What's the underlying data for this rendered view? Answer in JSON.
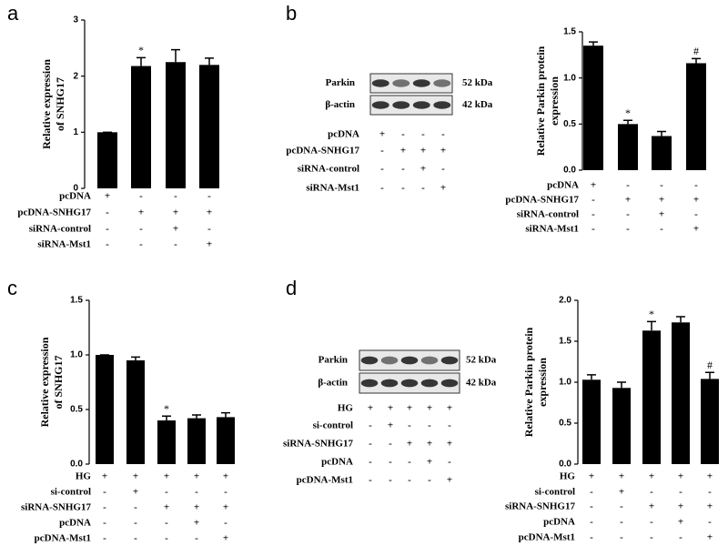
{
  "panel_labels": [
    "a",
    "b",
    "c",
    "d"
  ],
  "chart_data": [
    {
      "type": "bar",
      "ylabel": [
        "Relative expression",
        "of SNHG17"
      ],
      "color": "#000000",
      "values": [
        1.0,
        2.18,
        2.25,
        2.2
      ],
      "errors": [
        0.0,
        0.15,
        0.22,
        0.12
      ],
      "annotations": [
        null,
        "*",
        null,
        null
      ],
      "ylim": [
        0,
        3
      ],
      "yticks": [
        0,
        1,
        2,
        3
      ],
      "conditions": [
        {
          "label": "pcDNA",
          "marks": [
            "+",
            "-",
            "-",
            "-"
          ]
        },
        {
          "label": "pcDNA-SNHG17",
          "marks": [
            "-",
            "+",
            "+",
            "+"
          ]
        },
        {
          "label": "siRNA-control",
          "marks": [
            "-",
            "-",
            "+",
            "-"
          ]
        },
        {
          "label": "siRNA-Mst1",
          "marks": [
            "-",
            "-",
            "-",
            "+"
          ]
        }
      ]
    },
    {
      "type": "bar",
      "ylabel": [
        "Relative  Parkin protein",
        "expression"
      ],
      "color": "#000000",
      "values": [
        1.35,
        0.5,
        0.37,
        1.16
      ],
      "errors": [
        0.04,
        0.04,
        0.05,
        0.05
      ],
      "annotations": [
        null,
        "*",
        null,
        "#"
      ],
      "ylim": [
        0,
        1.5
      ],
      "yticks": [
        {
          "value": 0,
          "label": "0.0"
        },
        0.5,
        {
          "value": 1,
          "label": "1.0"
        },
        1.5
      ],
      "conditions": [
        {
          "label": "pcDNA",
          "marks": [
            "+",
            "-",
            "-",
            "-"
          ]
        },
        {
          "label": "pcDNA-SNHG17",
          "marks": [
            "-",
            "+",
            "+",
            "+"
          ]
        },
        {
          "label": "siRNA-control",
          "marks": [
            "-",
            "-",
            "+",
            "-"
          ]
        },
        {
          "label": "siRNA-Mst1",
          "marks": [
            "-",
            "-",
            "-",
            "+"
          ]
        }
      ]
    },
    {
      "type": "bar",
      "ylabel": [
        "Relative expression",
        "of SNHG17"
      ],
      "color": "#000000",
      "values": [
        1.0,
        0.95,
        0.4,
        0.42,
        0.43
      ],
      "errors": [
        0.0,
        0.03,
        0.04,
        0.03,
        0.04
      ],
      "annotations": [
        null,
        null,
        "*",
        null,
        null
      ],
      "ylim": [
        0,
        1.5
      ],
      "yticks": [
        {
          "value": 0,
          "label": "0.0"
        },
        0.5,
        {
          "value": 1,
          "label": "1.0"
        },
        1.5
      ],
      "conditions": [
        {
          "label": "HG",
          "marks": [
            "+",
            "+",
            "+",
            "+",
            "+"
          ]
        },
        {
          "label": "si-control",
          "marks": [
            "-",
            "+",
            "-",
            "-",
            "-"
          ]
        },
        {
          "label": "siRNA-SNHG17",
          "marks": [
            "-",
            "-",
            "+",
            "+",
            "+"
          ]
        },
        {
          "label": "pcDNA",
          "marks": [
            "-",
            "-",
            "-",
            "+",
            "-"
          ]
        },
        {
          "label": "pcDNA-Mst1",
          "marks": [
            "-",
            "-",
            "-",
            "-",
            "+"
          ]
        }
      ]
    },
    {
      "type": "bar",
      "ylabel": [
        "Relative  Parkin protein",
        "expression"
      ],
      "color": "#000000",
      "values": [
        1.03,
        0.93,
        1.63,
        1.73,
        1.04
      ],
      "errors": [
        0.06,
        0.07,
        0.11,
        0.07,
        0.08
      ],
      "annotations": [
        null,
        null,
        "*",
        null,
        "#"
      ],
      "ylim": [
        0,
        2
      ],
      "yticks": [
        {
          "value": 0,
          "label": "0.0"
        },
        0.5,
        {
          "value": 1,
          "label": "1.0"
        },
        1.5,
        {
          "value": 2,
          "label": "2.0"
        }
      ],
      "conditions": [
        {
          "label": "HG",
          "marks": [
            "+",
            "+",
            "+",
            "+",
            "+"
          ]
        },
        {
          "label": "si-control",
          "marks": [
            "-",
            "+",
            "-",
            "-",
            "-"
          ]
        },
        {
          "label": "siRNA-SNHG17",
          "marks": [
            "-",
            "-",
            "+",
            "+",
            "+"
          ]
        },
        {
          "label": "pcDNA",
          "marks": [
            "-",
            "-",
            "-",
            "+",
            "-"
          ]
        },
        {
          "label": "pcDNA-Mst1",
          "marks": [
            "-",
            "-",
            "-",
            "-",
            "+"
          ]
        }
      ]
    }
  ],
  "blots": [
    {
      "bands": [
        "Parkin",
        "β-actin"
      ],
      "sizes": [
        "52 kDa",
        "42 kDa"
      ],
      "conditions": [
        {
          "label": "pcDNA",
          "marks": [
            "+",
            "-",
            "-",
            "-"
          ]
        },
        {
          "label": "pcDNA-SNHG17",
          "marks": [
            "-",
            "+",
            "+",
            "+"
          ]
        },
        {
          "label": "siRNA-control",
          "marks": [
            "-",
            "-",
            "+",
            "-"
          ]
        },
        {
          "label": "siRNA-Mst1",
          "marks": [
            "-",
            "-",
            "-",
            "+"
          ]
        }
      ]
    },
    {
      "bands": [
        "Parkin",
        "β-actin"
      ],
      "sizes": [
        "52 kDa",
        "42 kDa"
      ],
      "conditions": [
        {
          "label": "HG",
          "marks": [
            "+",
            "+",
            "+",
            "+",
            "+"
          ]
        },
        {
          "label": "si-control",
          "marks": [
            "-",
            "+",
            "-",
            "-",
            "-"
          ]
        },
        {
          "label": "siRNA-SNHG17",
          "marks": [
            "-",
            "-",
            "+",
            "+",
            "+"
          ]
        },
        {
          "label": "pcDNA",
          "marks": [
            "-",
            "-",
            "-",
            "+",
            "-"
          ]
        },
        {
          "label": "pcDNA-Mst1",
          "marks": [
            "-",
            "-",
            "-",
            "-",
            "+"
          ]
        }
      ]
    }
  ]
}
